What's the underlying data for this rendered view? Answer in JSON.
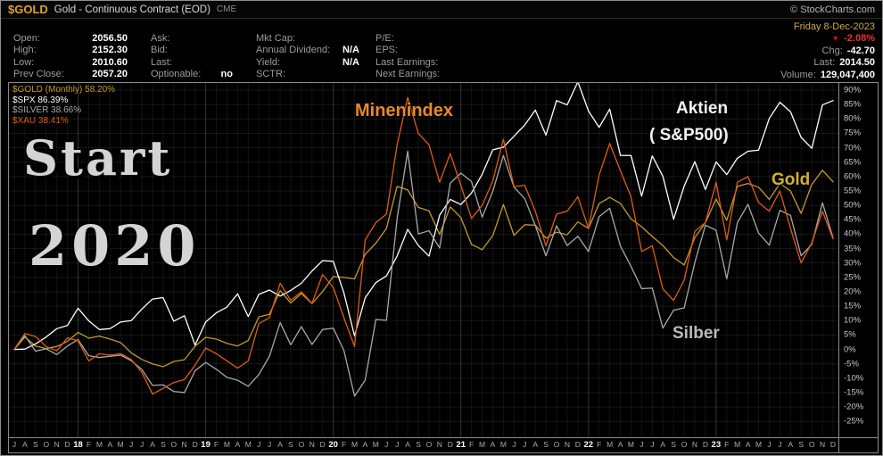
{
  "header": {
    "symbol": "$GOLD",
    "title": "Gold - Continuous Contract (EOD)",
    "exchange": "CME",
    "copyright": "© StockCharts.com"
  },
  "info": {
    "date": "Friday 8-Dec-2023",
    "down_arrow": "▼",
    "pct_change": "-2.08%",
    "cols": [
      {
        "rows": [
          {
            "label": "Open:",
            "value": "2056.50"
          },
          {
            "label": "High:",
            "value": "2152.30"
          },
          {
            "label": "Low:",
            "value": "2010.60"
          },
          {
            "label": "Prev Close:",
            "value": "2057.20"
          }
        ]
      },
      {
        "rows": [
          {
            "label": "Ask:",
            "value": ""
          },
          {
            "label": "Bid:",
            "value": ""
          },
          {
            "label": "Last:",
            "value": ""
          },
          {
            "label": "Optionable:",
            "value": "no"
          }
        ]
      },
      {
        "rows": [
          {
            "label": "Mkt Cap:",
            "value": ""
          },
          {
            "label": "Annual Dividend:",
            "value": "N/A"
          },
          {
            "label": "Yield:",
            "value": "N/A"
          },
          {
            "label": "SCTR:",
            "value": ""
          }
        ]
      },
      {
        "rows": [
          {
            "label": "P/E:",
            "value": ""
          },
          {
            "label": "EPS:",
            "value": ""
          },
          {
            "label": "Last Earnings:",
            "value": ""
          },
          {
            "label": "Next Earnings:",
            "value": ""
          }
        ]
      }
    ],
    "rows_right": [
      {
        "label": "Chg:",
        "value": "-42.70"
      },
      {
        "label": "Last:",
        "value": "2014.50"
      },
      {
        "label": "Volume:",
        "value": "129,047,400"
      }
    ],
    "colors": {
      "date": "#cfa93f",
      "negative": "#e83030"
    }
  },
  "chart_data": {
    "type": "line",
    "description": "Percent change comparison since Jul 2017, monthly closes",
    "grid": true,
    "legend_position": "top-left",
    "ylim": [
      -30.5,
      92.5
    ],
    "ytick_max": 90,
    "ytick_min": -25,
    "ytick_step": 5,
    "x": [
      "2017-07",
      "2017-08",
      "2017-09",
      "2017-10",
      "2017-11",
      "2017-12",
      "2018-01",
      "2018-02",
      "2018-03",
      "2018-04",
      "2018-05",
      "2018-06",
      "2018-07",
      "2018-08",
      "2018-09",
      "2018-10",
      "2018-11",
      "2018-12",
      "2019-01",
      "2019-02",
      "2019-03",
      "2019-04",
      "2019-05",
      "2019-06",
      "2019-07",
      "2019-08",
      "2019-09",
      "2019-10",
      "2019-11",
      "2019-12",
      "2020-01",
      "2020-02",
      "2020-03",
      "2020-04",
      "2020-05",
      "2020-06",
      "2020-07",
      "2020-08",
      "2020-09",
      "2020-10",
      "2020-11",
      "2020-12",
      "2021-01",
      "2021-02",
      "2021-03",
      "2021-04",
      "2021-05",
      "2021-06",
      "2021-07",
      "2021-08",
      "2021-09",
      "2021-10",
      "2021-11",
      "2021-12",
      "2022-01",
      "2022-02",
      "2022-03",
      "2022-04",
      "2022-05",
      "2022-06",
      "2022-07",
      "2022-08",
      "2022-09",
      "2022-10",
      "2022-11",
      "2022-12",
      "2023-01",
      "2023-02",
      "2023-03",
      "2023-04",
      "2023-05",
      "2023-06",
      "2023-07",
      "2023-08",
      "2023-09",
      "2023-10",
      "2023-11",
      "2023-12"
    ],
    "series": [
      {
        "name": "$GOLD",
        "legend_label": "$GOLD (Monthly) 58.20%",
        "color": "#c49a2e",
        "final_pct": 58.2,
        "values": [
          0,
          4.3,
          1.2,
          0.3,
          1,
          2.8,
          5.9,
          3.9,
          4.6,
          3.6,
          2.4,
          -1.2,
          -3.5,
          -5,
          -6,
          -4.2,
          -3.6,
          1.1,
          4.2,
          3.6,
          2.1,
          1.2,
          3.1,
          11.3,
          12.2,
          20.4,
          16.1,
          19.4,
          15.9,
          20.1,
          25.3,
          25,
          24.5,
          33,
          36.9,
          42,
          56.6,
          55.4,
          49.3,
          48.1,
          39.9,
          49.5,
          45.8,
          36.5,
          34.6,
          39.5,
          50.3,
          39.6,
          43.3,
          43.1,
          38.6,
          40.7,
          39.8,
          44.3,
          42,
          50.6,
          52.8,
          50.7,
          45.3,
          42.6,
          39.2,
          36.1,
          31.9,
          29.3,
          38.8,
          44,
          52.2,
          44.8,
          56.6,
          57.6,
          56.3,
          52.1,
          57.6,
          55,
          47.2,
          57.3,
          62.2,
          58.2
        ]
      },
      {
        "name": "$SPX",
        "legend_label": "$SPX 86.39%",
        "color": "#ffffff",
        "final_pct": 86.39,
        "values": [
          0,
          0.1,
          1.9,
          4.3,
          7.2,
          8.3,
          14.3,
          9.9,
          6.9,
          7.2,
          9.5,
          10,
          14,
          17.5,
          18,
          9.8,
          11.7,
          1.5,
          9.5,
          12.7,
          14.7,
          19.3,
          11.4,
          19.1,
          20.6,
          18.5,
          20.5,
          23,
          27.2,
          30.8,
          30.6,
          19.6,
          4.7,
          17.9,
          23.2,
          25.5,
          32.4,
          41.7,
          36.1,
          32.4,
          46.6,
          52.1,
          50.3,
          54.3,
          60.8,
          69.3,
          70.2,
          74,
          77.9,
          83.1,
          74.4,
          86.4,
          84.9,
          92.9,
          82.8,
          77.1,
          83.4,
          67.3,
          67.3,
          53.2,
          67.2,
          60.1,
          45.2,
          56.7,
          65.2,
          55.5,
          65.1,
          60.7,
          66.4,
          68.8,
          69.2,
          80.2,
          85.8,
          82.5,
          73.6,
          69.8,
          84.9,
          86.4
        ]
      },
      {
        "name": "$SILVER",
        "legend_label": "$SILVER 38.66%",
        "color": "#a8a8a8",
        "final_pct": 38.66,
        "values": [
          0,
          4.8,
          -0.6,
          0.2,
          -1.8,
          1.2,
          3.4,
          -2.2,
          -2.8,
          -2.4,
          -2,
          -3.9,
          -7,
          -12.5,
          -12.3,
          -14.6,
          -15,
          -7.4,
          -4.5,
          -6.9,
          -9.7,
          -10.7,
          -12.8,
          -8.7,
          -2.4,
          9.3,
          1.6,
          7.9,
          1.7,
          6.9,
          7.4,
          -0.4,
          -16.2,
          -10.7,
          10.4,
          10.1,
          45.4,
          68.8,
          40.1,
          41.2,
          35.2,
          57.7,
          61.2,
          58.3,
          45.9,
          54.9,
          67.3,
          56.3,
          52.4,
          43,
          32.5,
          42.9,
          36.1,
          39.3,
          34,
          46.1,
          49,
          35.9,
          28.8,
          21.1,
          21.3,
          7.4,
          13.6,
          14.4,
          30.1,
          43.1,
          41.4,
          24.5,
          44,
          50.4,
          40.4,
          36.2,
          48.3,
          46.5,
          32.5,
          36.5,
          50.9,
          38.7
        ]
      },
      {
        "name": "$XAU",
        "legend_label": "$XAU 38.41%",
        "color": "#e05c14",
        "final_pct": 38.41,
        "values": [
          0,
          5.5,
          4.5,
          1,
          -0.5,
          4,
          3,
          -4,
          -1.5,
          -2,
          -1.5,
          -3.5,
          -8,
          -15.5,
          -13.5,
          -11.5,
          -10.5,
          -5.5,
          0.5,
          -1.5,
          -4,
          -6.5,
          -4,
          9,
          11,
          23,
          17,
          20,
          16,
          26,
          21.5,
          11,
          1,
          38,
          44,
          47,
          71,
          87.5,
          75,
          71,
          58,
          68,
          57,
          45.5,
          50,
          58.5,
          73,
          56.5,
          57,
          48,
          36,
          47,
          48,
          53,
          42,
          60.5,
          71.5,
          62,
          53,
          34,
          36,
          21,
          17,
          24,
          41,
          44,
          58,
          38,
          58,
          60,
          51,
          48,
          55,
          42,
          30,
          37,
          48,
          38.4
        ]
      }
    ],
    "annotations": [
      {
        "text": "Start",
        "color": "#d4d4d4"
      },
      {
        "text": "2020",
        "color": "#d4d4d4"
      },
      {
        "text": "Minenindex",
        "color": "#e8882a"
      },
      {
        "text": "Aktien",
        "color": "#f2f2f2"
      },
      {
        "text": "( S&P500)",
        "color": "#f2f2f2"
      },
      {
        "text": "Gold",
        "color": "#d4af37"
      },
      {
        "text": "Silber",
        "color": "#b6babe"
      }
    ]
  }
}
